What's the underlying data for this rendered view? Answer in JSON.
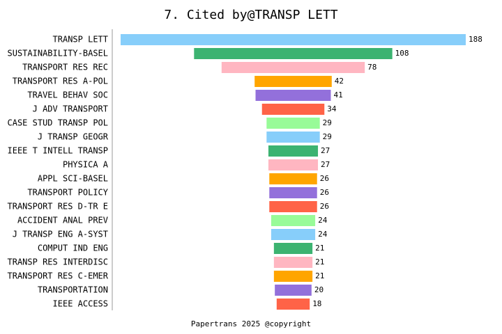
{
  "chart_data": {
    "type": "funnel",
    "title": "7. Cited by@TRANSP LETT",
    "caption": "Papertrans 2025 @copyright",
    "categories": [
      "TRANSP LETT",
      "SUSTAINABILITY-BASEL",
      "TRANSPORT RES REC",
      "TRANSPORT RES A-POL",
      "TRAVEL BEHAV SOC",
      "J ADV TRANSPORT",
      "CASE STUD TRANSP POL",
      "J TRANSP GEOGR",
      "IEEE T INTELL TRANSP",
      "PHYSICA A",
      "APPL SCI-BASEL",
      "TRANSPORT POLICY",
      "TRANSPORT RES D-TR E",
      "ACCIDENT ANAL PREV",
      "J TRANSP ENG A-SYST",
      "COMPUT IND ENG",
      "TRANSP RES INTERDISC",
      "TRANSPORT RES C-EMER",
      "TRANSPORTATION",
      "IEEE ACCESS"
    ],
    "values": [
      188,
      108,
      78,
      42,
      41,
      34,
      29,
      29,
      27,
      27,
      26,
      26,
      26,
      24,
      24,
      21,
      21,
      21,
      20,
      18
    ],
    "colors": [
      "#87cefa",
      "#3cb371",
      "#ffb6c1",
      "#ffa500",
      "#9370db",
      "#ff6347",
      "#98fb98"
    ]
  }
}
